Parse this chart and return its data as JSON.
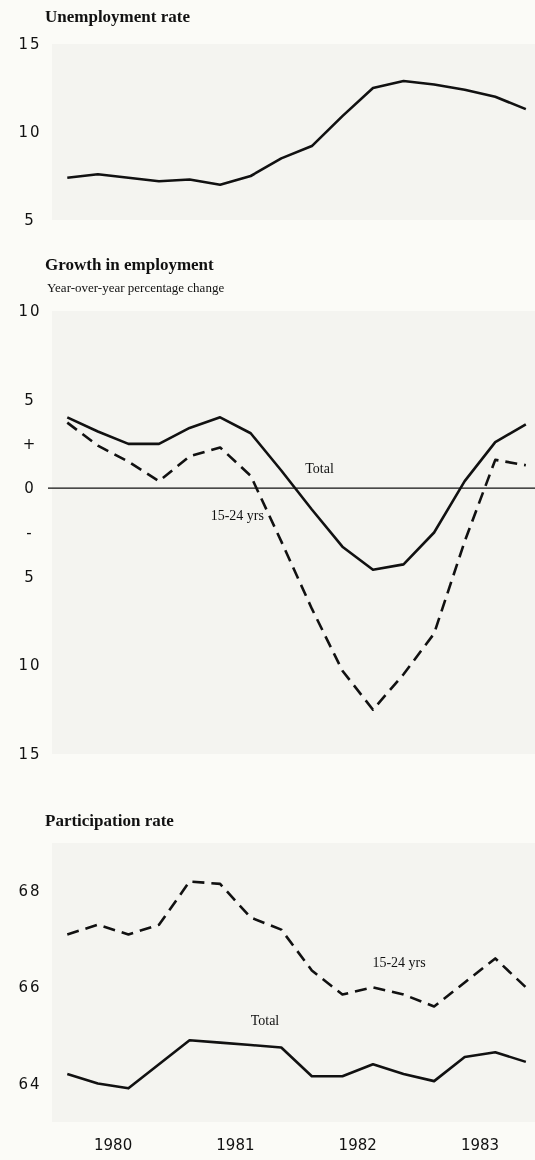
{
  "chart_data": [
    {
      "type": "line",
      "title": "Unemployment rate",
      "x": [
        1980.125,
        1980.375,
        1980.625,
        1980.875,
        1981.125,
        1981.375,
        1981.625,
        1981.875,
        1982.125,
        1982.375,
        1982.625,
        1982.875,
        1983.125,
        1983.375,
        1983.625,
        1983.875
      ],
      "series": [
        {
          "color": "#111111",
          "line_style": "solid",
          "values": [
            7.4,
            7.6,
            7.4,
            7.2,
            7.3,
            7.0,
            7.5,
            8.5,
            9.2,
            10.9,
            12.5,
            12.9,
            12.7,
            12.4,
            12.0,
            11.3
          ]
        }
      ],
      "xlim": [
        1980,
        1983.95
      ],
      "ylim": [
        5,
        15
      ],
      "yticks": [
        5,
        10,
        15
      ],
      "tick_labels": "y",
      "grid": false
    },
    {
      "type": "line",
      "title": "Growth in employment",
      "subtitle": "Year-over-year percentage change",
      "x": [
        1980.125,
        1980.375,
        1980.625,
        1980.875,
        1981.125,
        1981.375,
        1981.625,
        1981.875,
        1982.125,
        1982.375,
        1982.625,
        1982.875,
        1983.125,
        1983.375,
        1983.625,
        1983.875
      ],
      "series": [
        {
          "name": "Total",
          "color": "#111111",
          "line_style": "solid",
          "values": [
            4.0,
            3.2,
            2.5,
            2.5,
            3.4,
            4.0,
            3.1,
            1.0,
            -1.2,
            -3.3,
            -4.6,
            -4.3,
            -2.5,
            0.4,
            2.6,
            3.6
          ]
        },
        {
          "name": "15-24 yrs",
          "color": "#111111",
          "line_style": "dashed",
          "values": [
            3.7,
            2.4,
            1.5,
            0.4,
            1.8,
            2.3,
            0.7,
            -3.0,
            -6.8,
            -10.3,
            -12.5,
            -10.5,
            -8.2,
            -3.0,
            1.6,
            1.3
          ]
        }
      ],
      "xlim": [
        1980,
        1983.95
      ],
      "ylim": [
        -15,
        10
      ],
      "yticks": [
        {
          "value": -15,
          "label": "15"
        },
        {
          "value": -10,
          "label": "10"
        },
        {
          "value": -5,
          "label": "5"
        },
        {
          "value": -2.5,
          "label": "-"
        },
        0,
        {
          "value": 2.5,
          "label": "+"
        },
        5,
        10
      ],
      "ref_lines": [
        {
          "axis": "y",
          "value": 0,
          "color": "#111111"
        }
      ],
      "tick_labels": "y",
      "grid": false
    },
    {
      "type": "line",
      "title": "Participation rate",
      "x": [
        1980.125,
        1980.375,
        1980.625,
        1980.875,
        1981.125,
        1981.375,
        1981.625,
        1981.875,
        1982.125,
        1982.375,
        1982.625,
        1982.875,
        1983.125,
        1983.375,
        1983.625,
        1983.875
      ],
      "series": [
        {
          "name": "15-24 yrs",
          "color": "#111111",
          "line_style": "dashed",
          "values": [
            67.1,
            67.3,
            67.1,
            67.3,
            68.2,
            68.15,
            67.45,
            67.2,
            66.35,
            65.85,
            66.0,
            65.85,
            65.6,
            66.1,
            66.6,
            66.0
          ]
        },
        {
          "name": "Total",
          "color": "#111111",
          "line_style": "solid",
          "values": [
            64.2,
            64.0,
            63.9,
            64.4,
            64.9,
            64.85,
            64.8,
            64.75,
            64.15,
            64.15,
            64.4,
            64.2,
            64.05,
            64.55,
            64.65,
            64.45
          ]
        }
      ],
      "xlim": [
        1980,
        1983.95
      ],
      "xticks": [
        {
          "value": 1980.5,
          "label": "1980"
        },
        {
          "value": 1981.5,
          "label": "1981"
        },
        {
          "value": 1982.5,
          "label": "1982"
        },
        {
          "value": 1983.5,
          "label": "1983"
        }
      ],
      "ylim": [
        63.2,
        69
      ],
      "yticks": [
        64,
        66,
        68
      ],
      "grid": false
    }
  ]
}
